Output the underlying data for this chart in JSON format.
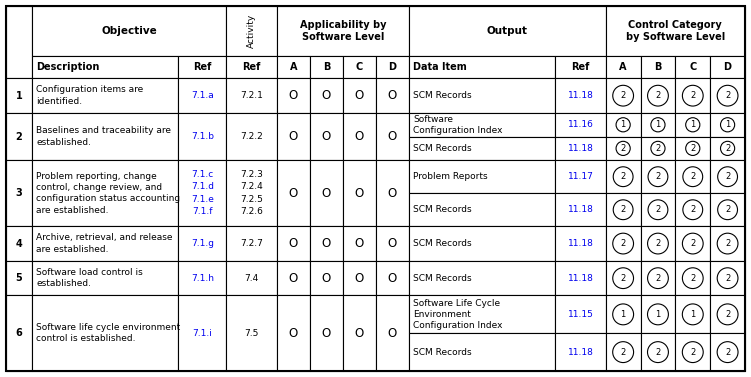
{
  "rows": [
    {
      "num": "1",
      "description": "Configuration items are\nidentified.",
      "obj_ref": "7.1.a",
      "act_ref": "7.2.1",
      "abcd": [
        "O",
        "O",
        "O",
        "O"
      ],
      "outputs": [
        {
          "data_item": "SCM Records",
          "out_ref": "11.18",
          "ctrl": [
            "2",
            "2",
            "2",
            "2"
          ]
        }
      ]
    },
    {
      "num": "2",
      "description": "Baselines and traceability are\nestablished.",
      "obj_ref": "7.1.b",
      "act_ref": "7.2.2",
      "abcd": [
        "O",
        "O",
        "O",
        "O"
      ],
      "outputs": [
        {
          "data_item": "Software\nConfiguration Index",
          "out_ref": "11.16",
          "ctrl": [
            "1",
            "1",
            "1",
            "1"
          ]
        },
        {
          "data_item": "SCM Records",
          "out_ref": "11.18",
          "ctrl": [
            "2",
            "2",
            "2",
            "2"
          ]
        }
      ]
    },
    {
      "num": "3",
      "description": "Problem reporting, change\ncontrol, change review, and\nconfiguration status accounting\nare established.",
      "obj_ref": "7.1.c\n7.1.d\n7.1.e\n7.1.f",
      "act_ref": "7.2.3\n7.2.4\n7.2.5\n7.2.6",
      "abcd": [
        "O",
        "O",
        "O",
        "O"
      ],
      "outputs": [
        {
          "data_item": "Problem Reports",
          "out_ref": "11.17",
          "ctrl": [
            "2",
            "2",
            "2",
            "2"
          ]
        },
        {
          "data_item": "SCM Records",
          "out_ref": "11.18",
          "ctrl": [
            "2",
            "2",
            "2",
            "2"
          ]
        }
      ]
    },
    {
      "num": "4",
      "description": "Archive, retrieval, and release\nare established.",
      "obj_ref": "7.1.g",
      "act_ref": "7.2.7",
      "abcd": [
        "O",
        "O",
        "O",
        "O"
      ],
      "outputs": [
        {
          "data_item": "SCM Records",
          "out_ref": "11.18",
          "ctrl": [
            "2",
            "2",
            "2",
            "2"
          ]
        }
      ]
    },
    {
      "num": "5",
      "description": "Software load control is\nestablished.",
      "obj_ref": "7.1.h",
      "act_ref": "7.4",
      "abcd": [
        "O",
        "O",
        "O",
        "O"
      ],
      "outputs": [
        {
          "data_item": "SCM Records",
          "out_ref": "11.18",
          "ctrl": [
            "2",
            "2",
            "2",
            "2"
          ]
        }
      ]
    },
    {
      "num": "6",
      "description": "Software life cycle environment\ncontrol is established.",
      "obj_ref": "7.1.i",
      "act_ref": "7.5",
      "abcd": [
        "O",
        "O",
        "O",
        "O"
      ],
      "outputs": [
        {
          "data_item": "Software Life Cycle\nEnvironment\nConfiguration Index",
          "out_ref": "11.15",
          "ctrl": [
            "1",
            "1",
            "1",
            "2"
          ]
        },
        {
          "data_item": "SCM Records",
          "out_ref": "11.18",
          "ctrl": [
            "2",
            "2",
            "2",
            "2"
          ]
        }
      ]
    }
  ],
  "link_color": "#0000EE",
  "font_name": "DejaVu Sans"
}
